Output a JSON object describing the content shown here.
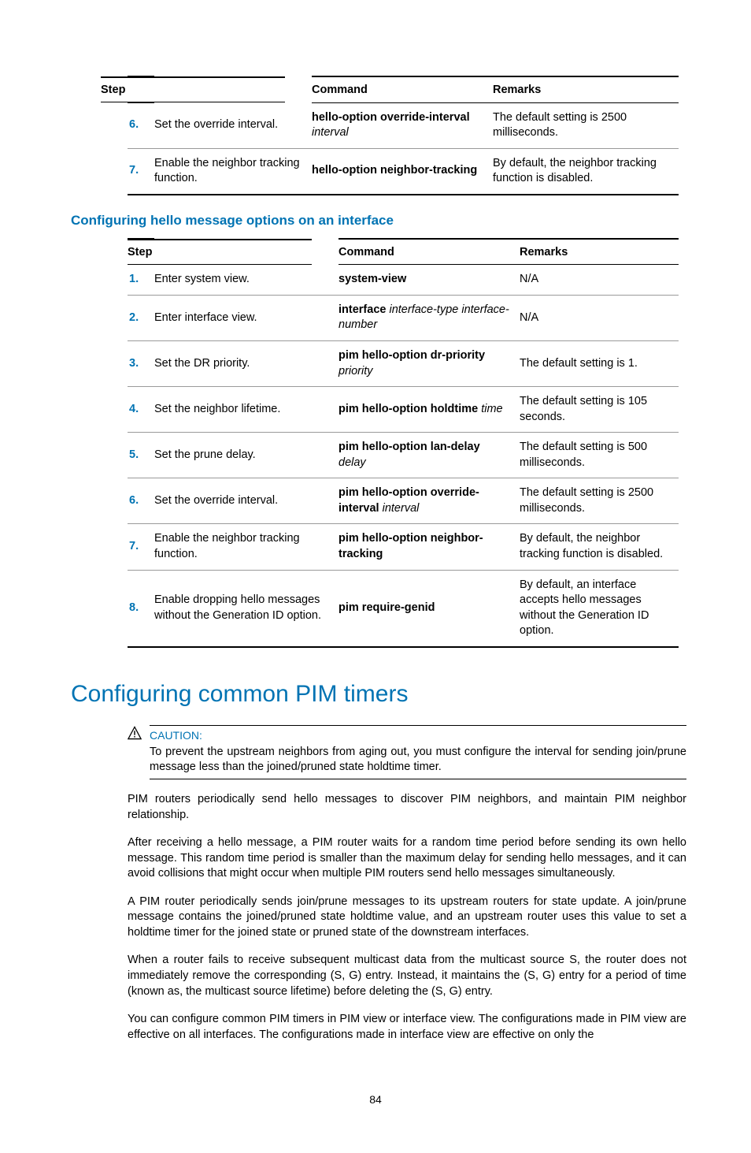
{
  "table1": {
    "headers": {
      "step": "Step",
      "command": "Command",
      "remarks": "Remarks"
    },
    "rows": [
      {
        "num": "6.",
        "step": "Set the override interval.",
        "cmd_bold": "hello-option override-interval",
        "cmd_italic": " interval",
        "remarks": "The default setting is 2500 milliseconds."
      },
      {
        "num": "7.",
        "step": "Enable the neighbor tracking function.",
        "cmd_bold": "hello-option neighbor-tracking",
        "cmd_italic": "",
        "remarks": "By default, the neighbor tracking function is disabled."
      }
    ]
  },
  "h3": "Configuring hello message options on an interface",
  "table2": {
    "headers": {
      "step": "Step",
      "command": "Command",
      "remarks": "Remarks"
    },
    "rows": [
      {
        "num": "1.",
        "step": "Enter system view.",
        "cmd_bold": "system-view",
        "cmd_italic": "",
        "remarks": "N/A"
      },
      {
        "num": "2.",
        "step": "Enter interface view.",
        "cmd_bold": "interface",
        "cmd_italic": " interface-type interface-number",
        "remarks": "N/A"
      },
      {
        "num": "3.",
        "step": "Set the DR priority.",
        "cmd_bold": "pim hello-option dr-priority",
        "cmd_italic": " priority",
        "remarks": "The default setting is 1."
      },
      {
        "num": "4.",
        "step": "Set the neighbor lifetime.",
        "cmd_bold": "pim hello-option holdtime",
        "cmd_italic": " time",
        "remarks": "The default setting is 105 seconds."
      },
      {
        "num": "5.",
        "step": "Set the prune delay.",
        "cmd_bold": "pim hello-option lan-delay",
        "cmd_italic": " delay",
        "remarks": "The default setting is 500 milliseconds."
      },
      {
        "num": "6.",
        "step": "Set the override interval.",
        "cmd_bold": "pim hello-option override-interval",
        "cmd_italic": " interval",
        "remarks": "The default setting is 2500 milliseconds."
      },
      {
        "num": "7.",
        "step": "Enable the neighbor tracking function.",
        "cmd_bold": "pim hello-option neighbor-tracking",
        "cmd_italic": "",
        "remarks": "By default, the neighbor tracking function is disabled."
      },
      {
        "num": "8.",
        "step": "Enable dropping hello messages without the Generation ID option.",
        "cmd_bold": "pim require-genid",
        "cmd_italic": "",
        "remarks": "By default, an interface accepts hello messages without the Generation ID option."
      }
    ]
  },
  "h1": "Configuring common PIM timers",
  "caution": {
    "icon": "⚠",
    "label": "CAUTION:",
    "text": "To prevent the upstream neighbors from aging out, you must configure the interval for sending join/prune message less than the joined/pruned state holdtime timer."
  },
  "paras": {
    "p1": "PIM routers periodically send hello messages to discover PIM neighbors, and maintain PIM neighbor relationship.",
    "p2": "After receiving a hello message, a PIM router waits for a random time period before sending its own hello message. This random time period is smaller than the maximum delay for sending hello messages, and it can avoid collisions that might occur when multiple PIM routers send hello messages simultaneously.",
    "p3": "A PIM router periodically sends join/prune messages to its upstream routers for state update. A join/prune message contains the joined/pruned state holdtime value, and an upstream router uses this value to set a holdtime timer for the joined state or pruned state of the downstream interfaces.",
    "p4": "When a router fails to receive subsequent multicast data from the multicast source S, the router does not immediately remove the corresponding (S, G) entry. Instead, it maintains the (S, G) entry for a period of time (known as, the multicast source lifetime) before deleting the (S, G) entry.",
    "p5": "You can configure common PIM timers in PIM view or interface view. The configurations made in PIM view are effective on all interfaces. The configurations made in interface view are effective on only the"
  },
  "pageNumber": "84"
}
